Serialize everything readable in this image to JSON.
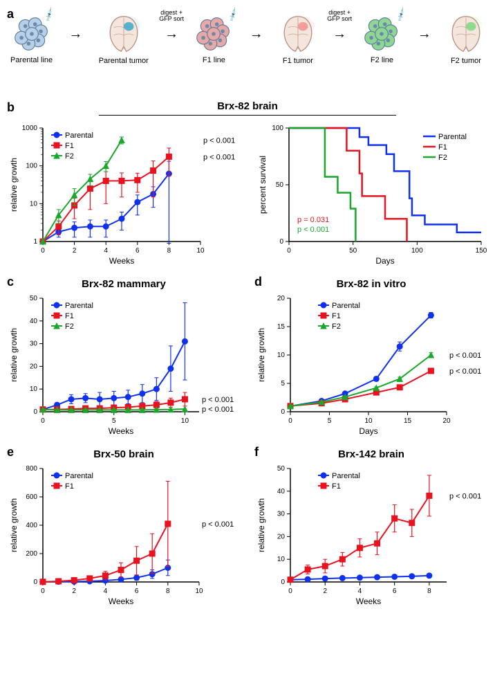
{
  "colors": {
    "parental": "#1030f0",
    "f1": "#e8131f",
    "f2": "#19a82c",
    "axis": "#000000",
    "bg": "#ffffff"
  },
  "panel_a": {
    "labels": [
      "Parental line",
      "Parental tumor",
      "F1 line",
      "F1 tumor",
      "F2 line",
      "F2 tumor"
    ],
    "arrow_labels": [
      "",
      "digest +\nGFP sort",
      "",
      "digest +\nGFP sort",
      ""
    ],
    "cell_colors": [
      "#b8cfe8",
      "#e8a8a8",
      "#8fd695"
    ],
    "tumor_colors": [
      "#3da8c8",
      "#f09090",
      "#7fd880"
    ]
  },
  "panel_b": {
    "title": "Brx-82 brain",
    "growth": {
      "xlabel": "Weeks",
      "ylabel": "relative growth",
      "xlim": [
        0,
        10
      ],
      "ylim": [
        1,
        1000
      ],
      "yscale": "log",
      "xticks": [
        0,
        2,
        4,
        6,
        8,
        10
      ],
      "yticks": [
        1,
        10,
        100,
        1000
      ],
      "series": [
        {
          "name": "Parental",
          "color": "#1030f0",
          "marker": "circle",
          "x": [
            0,
            1,
            2,
            3,
            4,
            5,
            6,
            7,
            8
          ],
          "y": [
            1,
            1.8,
            2.3,
            2.5,
            2.5,
            4,
            11,
            18,
            62
          ],
          "err": [
            0,
            0.5,
            1,
            1.2,
            1.2,
            2,
            6,
            10,
            70
          ]
        },
        {
          "name": "F1",
          "color": "#e8131f",
          "marker": "square",
          "x": [
            0,
            1,
            2,
            3,
            4,
            5,
            6,
            7,
            8
          ],
          "y": [
            1,
            2.5,
            9,
            25,
            40,
            40,
            42,
            75,
            175
          ],
          "err": [
            0,
            1,
            5,
            18,
            30,
            25,
            22,
            60,
            120
          ],
          "p": "p < 0.001"
        },
        {
          "name": "F2",
          "color": "#19a82c",
          "marker": "triangle",
          "x": [
            0,
            1,
            2,
            3,
            4,
            5
          ],
          "y": [
            1,
            5,
            17,
            45,
            100,
            480
          ],
          "err": [
            0,
            2,
            8,
            15,
            30,
            100
          ],
          "p": "p < 0.001"
        }
      ]
    },
    "survival": {
      "xlabel": "Days",
      "ylabel": "percent survival",
      "xlim": [
        0,
        150
      ],
      "ylim": [
        0,
        100
      ],
      "xticks": [
        0,
        50,
        100,
        150
      ],
      "yticks": [
        0,
        50,
        100
      ],
      "series": [
        {
          "name": "Parental",
          "color": "#1030f0",
          "steps": [
            [
              0,
              100
            ],
            [
              55,
              100
            ],
            [
              55,
              92
            ],
            [
              62,
              92
            ],
            [
              62,
              85
            ],
            [
              76,
              85
            ],
            [
              76,
              77
            ],
            [
              82,
              77
            ],
            [
              82,
              62
            ],
            [
              94,
              62
            ],
            [
              94,
              38
            ],
            [
              96,
              38
            ],
            [
              96,
              23
            ],
            [
              106,
              23
            ],
            [
              106,
              15
            ],
            [
              131,
              15
            ],
            [
              131,
              8
            ],
            [
              150,
              8
            ]
          ]
        },
        {
          "name": "F1",
          "color": "#e8131f",
          "steps": [
            [
              0,
              100
            ],
            [
              45,
              100
            ],
            [
              45,
              80
            ],
            [
              55,
              80
            ],
            [
              55,
              60
            ],
            [
              57,
              60
            ],
            [
              57,
              40
            ],
            [
              75,
              40
            ],
            [
              75,
              20
            ],
            [
              92,
              20
            ],
            [
              92,
              0
            ]
          ],
          "p": "p = 0.031"
        },
        {
          "name": "F2",
          "color": "#19a82c",
          "steps": [
            [
              0,
              100
            ],
            [
              28,
              100
            ],
            [
              28,
              57
            ],
            [
              38,
              57
            ],
            [
              38,
              43
            ],
            [
              48,
              43
            ],
            [
              48,
              29
            ],
            [
              52,
              29
            ],
            [
              52,
              0
            ]
          ],
          "p": "p < 0.001"
        }
      ]
    }
  },
  "panel_c": {
    "title": "Brx-82 mammary",
    "xlabel": "Weeks",
    "ylabel": "relative growth",
    "xlim": [
      0,
      11
    ],
    "ylim": [
      0,
      50
    ],
    "xticks": [
      0,
      5,
      10
    ],
    "yticks": [
      0,
      10,
      20,
      30,
      40,
      50
    ],
    "series": [
      {
        "name": "Parental",
        "color": "#1030f0",
        "marker": "circle",
        "x": [
          0,
          1,
          2,
          3,
          4,
          5,
          6,
          7,
          8,
          9,
          10
        ],
        "y": [
          1,
          3,
          5.5,
          6,
          5.5,
          6,
          6.5,
          8,
          10,
          19,
          31
        ],
        "err": [
          0,
          1,
          2,
          2,
          3,
          3,
          3,
          4,
          5,
          10,
          17
        ]
      },
      {
        "name": "F1",
        "color": "#e8131f",
        "marker": "square",
        "x": [
          0,
          1,
          2,
          3,
          4,
          5,
          6,
          7,
          8,
          9,
          10
        ],
        "y": [
          1,
          1,
          1.2,
          1.5,
          1.5,
          1.8,
          2,
          2.5,
          3,
          4,
          5.5
        ],
        "err": [
          0,
          0.5,
          0.5,
          0.5,
          0.5,
          0.8,
          1,
          1,
          1.5,
          2,
          3
        ],
        "p": "p < 0.001"
      },
      {
        "name": "F2",
        "color": "#19a82c",
        "marker": "triangle",
        "x": [
          0,
          1,
          2,
          3,
          4,
          5,
          6,
          7,
          8,
          9,
          10
        ],
        "y": [
          1,
          0.8,
          0.8,
          0.8,
          0.8,
          0.8,
          0.8,
          0.8,
          0.9,
          1,
          1.2
        ],
        "err": [
          0,
          0,
          0,
          0,
          0,
          0,
          0,
          0,
          0,
          0,
          0
        ],
        "p": "p < 0.001"
      }
    ]
  },
  "panel_d": {
    "title": "Brx-82 in vitro",
    "xlabel": "Days",
    "ylabel": "relative growth",
    "xlim": [
      0,
      20
    ],
    "ylim": [
      0,
      20
    ],
    "xticks": [
      0,
      5,
      10,
      15,
      20
    ],
    "yticks": [
      0,
      5,
      10,
      15,
      20
    ],
    "series": [
      {
        "name": "Parental",
        "color": "#1030f0",
        "marker": "circle",
        "x": [
          0,
          4,
          7,
          11,
          14,
          18
        ],
        "y": [
          1,
          1.9,
          3.2,
          5.8,
          11.5,
          17
        ],
        "err": [
          0,
          0.2,
          0.3,
          0.4,
          0.8,
          0.5
        ]
      },
      {
        "name": "F1",
        "color": "#e8131f",
        "marker": "square",
        "x": [
          0,
          4,
          7,
          11,
          14,
          18
        ],
        "y": [
          1,
          1.5,
          2.2,
          3.4,
          4.3,
          7.2
        ],
        "err": [
          0,
          0.1,
          0.2,
          0.2,
          0.3,
          0.3
        ],
        "p": "p < 0.001"
      },
      {
        "name": "F2",
        "color": "#19a82c",
        "marker": "triangle",
        "x": [
          0,
          4,
          7,
          11,
          14,
          18
        ],
        "y": [
          1,
          1.7,
          2.6,
          4.2,
          5.8,
          10
        ],
        "err": [
          0,
          0.1,
          0.2,
          0.2,
          0.3,
          0.4
        ],
        "p": "p < 0.001"
      }
    ]
  },
  "panel_e": {
    "title": "Brx-50 brain",
    "xlabel": "Weeks",
    "ylabel": "relative growth",
    "xlim": [
      0,
      10
    ],
    "ylim": [
      0,
      800
    ],
    "xticks": [
      0,
      2,
      4,
      6,
      8,
      10
    ],
    "yticks": [
      0,
      200,
      400,
      600,
      800
    ],
    "series": [
      {
        "name": "Parental",
        "color": "#1030f0",
        "marker": "circle",
        "x": [
          0,
          1,
          2,
          3,
          4,
          5,
          6,
          7,
          8
        ],
        "y": [
          1,
          2,
          3,
          5,
          10,
          18,
          30,
          55,
          100
        ],
        "err": [
          0,
          1,
          2,
          3,
          6,
          10,
          18,
          30,
          55
        ]
      },
      {
        "name": "F1",
        "color": "#e8131f",
        "marker": "square",
        "x": [
          0,
          1,
          2,
          3,
          4,
          5,
          6,
          7,
          8
        ],
        "y": [
          1,
          5,
          12,
          25,
          45,
          85,
          150,
          200,
          410
        ],
        "err": [
          0,
          3,
          8,
          15,
          30,
          50,
          100,
          140,
          300
        ],
        "p": "p < 0.001"
      }
    ]
  },
  "panel_f": {
    "title": "Brx-142 brain",
    "xlabel": "Weeks",
    "ylabel": "relative growth",
    "xlim": [
      0,
      9
    ],
    "ylim": [
      0,
      50
    ],
    "xticks": [
      0,
      2,
      4,
      6,
      8
    ],
    "yticks": [
      0,
      10,
      20,
      30,
      40,
      50
    ],
    "series": [
      {
        "name": "Parental",
        "color": "#1030f0",
        "marker": "circle",
        "x": [
          0,
          1,
          2,
          3,
          4,
          5,
          6,
          7,
          8
        ],
        "y": [
          1,
          1.2,
          1.5,
          1.7,
          1.9,
          2.1,
          2.3,
          2.5,
          2.8
        ],
        "err": [
          0,
          0.3,
          0.3,
          0.4,
          0.4,
          0.5,
          0.5,
          0.5,
          0.6
        ]
      },
      {
        "name": "F1",
        "color": "#e8131f",
        "marker": "square",
        "x": [
          0,
          1,
          2,
          3,
          4,
          5,
          6,
          7,
          8
        ],
        "y": [
          1,
          5.5,
          7,
          10,
          15,
          17,
          28,
          26,
          38
        ],
        "err": [
          0,
          2,
          3,
          3,
          4,
          5,
          6,
          6,
          9
        ],
        "p": "p < 0.001"
      }
    ]
  }
}
